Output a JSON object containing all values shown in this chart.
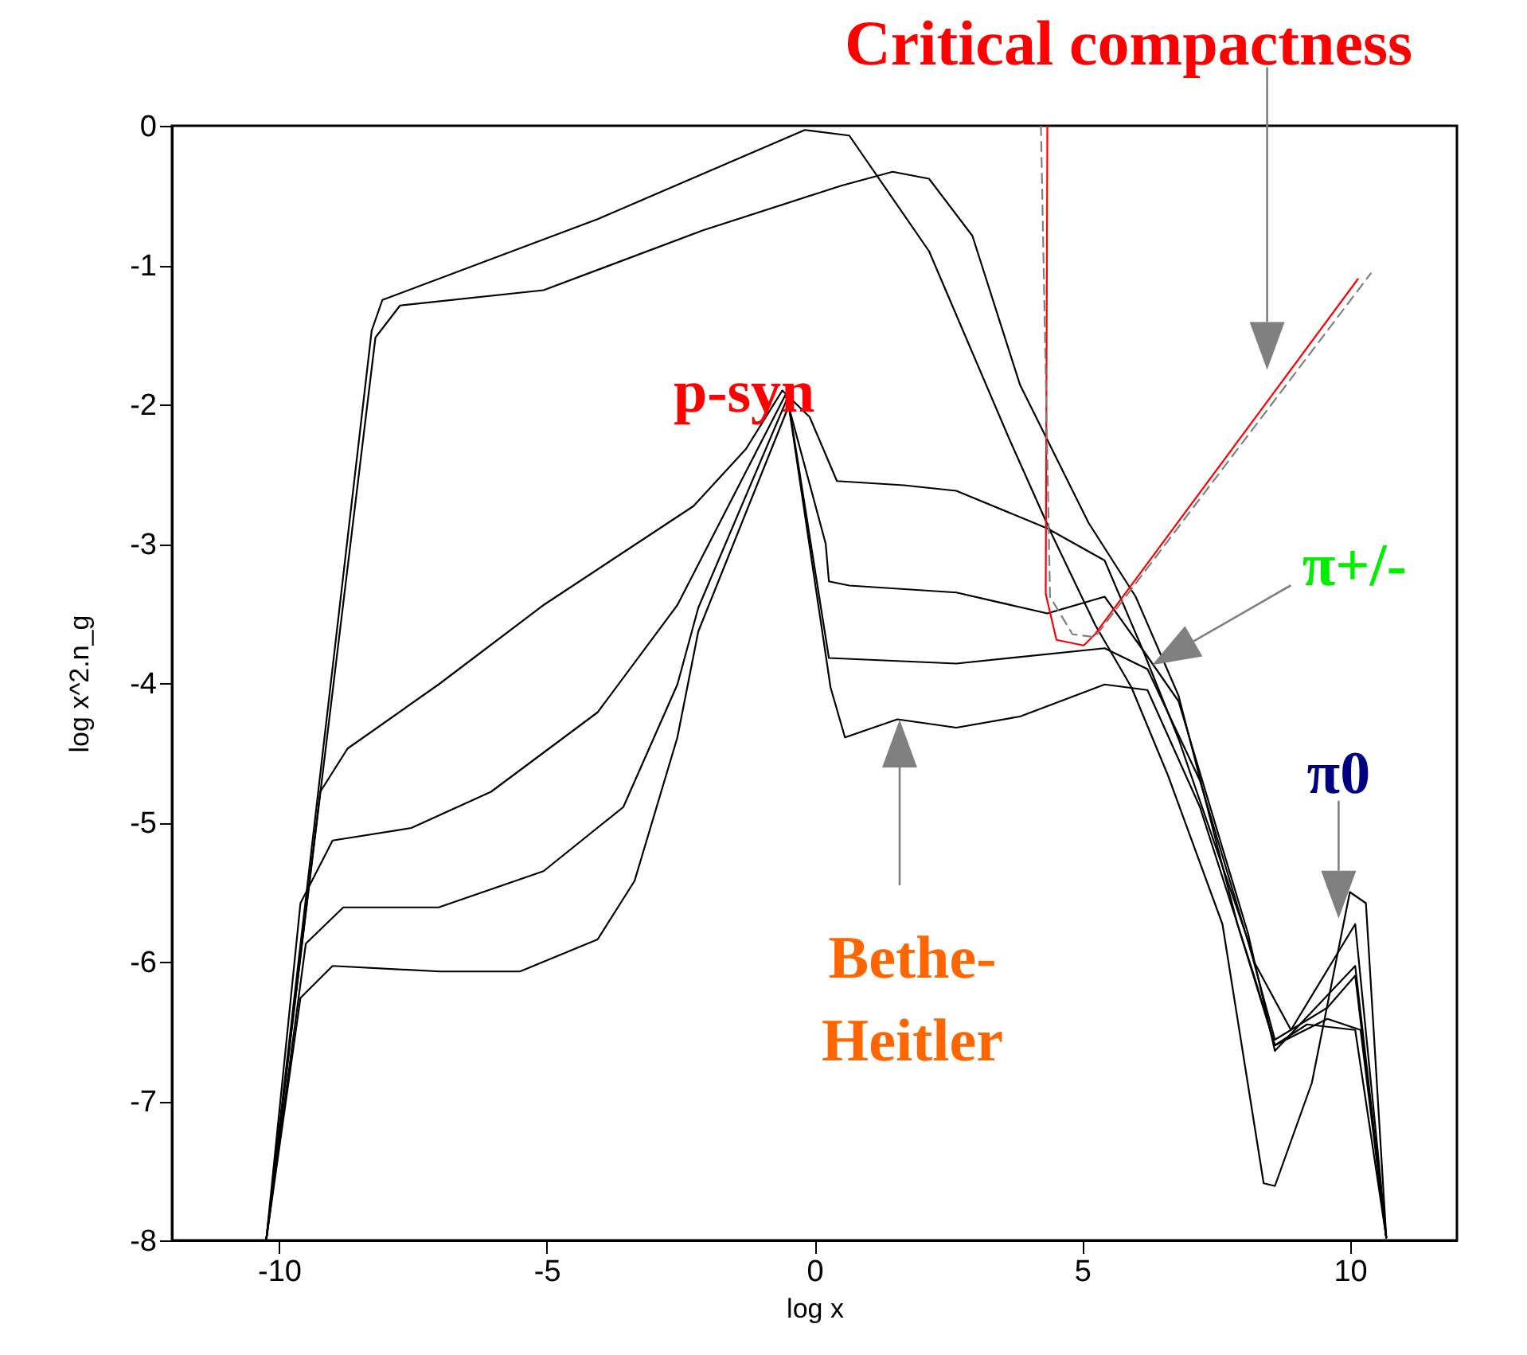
{
  "chart_data": {
    "type": "line",
    "xlabel": "log x",
    "ylabel": "log x^2.n_g",
    "xlim": [
      -12,
      12
    ],
    "ylim": [
      -8,
      0
    ],
    "xticks": [
      -10,
      -5,
      0,
      5,
      10
    ],
    "yticks": [
      -8,
      -7,
      -6,
      -5,
      -4,
      -3,
      -2,
      -1,
      0
    ],
    "grid": false,
    "legend": false,
    "series": [
      {
        "color": "#000000",
        "x": [
          -10.24,
          -8.27,
          -8.07,
          -4.05,
          -0.18,
          0.65,
          2.14,
          3.63,
          4.43,
          5.24,
          5.92,
          6.6,
          7.62,
          8.39,
          8.6,
          9.29,
          10.0,
          10.3,
          10.68
        ],
        "values": [
          -8,
          -1.47,
          -1.25,
          -0.67,
          -0.03,
          -0.07,
          -0.9,
          -2.24,
          -2.93,
          -3.58,
          -4.03,
          -4.66,
          -5.73,
          -7.59,
          -7.61,
          -6.87,
          -5.5,
          -5.58,
          -7.98
        ]
      },
      {
        "color": "#000000",
        "x": [
          -10.24,
          -8.2,
          -7.74,
          -5.06,
          -2.08,
          0.5,
          1.46,
          2.14,
          2.95,
          3.84,
          5.12,
          6.0,
          6.8,
          7.9,
          8.6,
          9.58,
          10.2,
          10.68
        ],
        "values": [
          -8,
          -1.52,
          -1.29,
          -1.18,
          -0.75,
          -0.43,
          -0.33,
          -0.38,
          -0.79,
          -1.86,
          -2.85,
          -3.38,
          -4.09,
          -5.73,
          -6.6,
          -6.41,
          -6.49,
          -7.98
        ]
      },
      {
        "color": "#000000",
        "x": [
          -10.24,
          -9.23,
          -8.72,
          -7.02,
          -5.06,
          -2.26,
          -1.28,
          -0.6,
          -0.09,
          0.42,
          1.67,
          2.65,
          4.35,
          5.42,
          6.13,
          6.8,
          8.1,
          8.6,
          10.1,
          10.68
        ],
        "values": [
          -8,
          -4.78,
          -4.47,
          -4.01,
          -3.44,
          -2.73,
          -2.32,
          -1.9,
          -2.09,
          -2.55,
          -2.58,
          -2.62,
          -2.89,
          -3.12,
          -3.76,
          -4.13,
          -5.8,
          -6.64,
          -6.03,
          -7.98
        ]
      },
      {
        "color": "#000000",
        "x": [
          -10.24,
          -9.6,
          -9.0,
          -7.53,
          -6.04,
          -4.05,
          -2.56,
          -0.54,
          0.21,
          0.27,
          0.65,
          2.65,
          4.35,
          5.42,
          6.13,
          6.8,
          8.1,
          8.6,
          9.58,
          10.1,
          10.68
        ],
        "values": [
          -8,
          -5.58,
          -5.13,
          -5.04,
          -4.78,
          -4.21,
          -3.44,
          -1.93,
          -3.0,
          -3.27,
          -3.3,
          -3.35,
          -3.5,
          -3.38,
          -3.76,
          -4.4,
          -5.85,
          -6.56,
          -6.33,
          -6.1,
          -7.98
        ]
      },
      {
        "color": "#000000",
        "x": [
          -10.24,
          -9.5,
          -8.8,
          -7.02,
          -5.06,
          -3.57,
          -2.56,
          -2.17,
          -0.5,
          0.27,
          2.65,
          5.42,
          6.22,
          7.2,
          8.21,
          8.9,
          10.1,
          10.68
        ],
        "values": [
          -8,
          -5.87,
          -5.61,
          -5.61,
          -5.35,
          -4.89,
          -4.01,
          -3.46,
          -1.95,
          -3.82,
          -3.86,
          -3.75,
          -3.9,
          -4.7,
          -6.0,
          -6.49,
          -5.73,
          -7.98
        ]
      },
      {
        "color": "#000000",
        "x": [
          -10.24,
          -9.6,
          -9.0,
          -7.0,
          -5.5,
          -4.05,
          -3.36,
          -2.56,
          -2.17,
          -0.48,
          0.3,
          0.57,
          1.55,
          2.65,
          3.84,
          5.42,
          6.22,
          7.2,
          8.21,
          8.6,
          9.2,
          10.1,
          10.68
        ],
        "values": [
          -8,
          -6.26,
          -6.03,
          -6.07,
          -6.07,
          -5.84,
          -5.42,
          -4.39,
          -3.63,
          -2.01,
          -4.03,
          -4.39,
          -4.26,
          -4.32,
          -4.24,
          -4.01,
          -4.05,
          -4.89,
          -6.1,
          -6.6,
          -6.45,
          -6.49,
          -7.98
        ]
      },
      {
        "color": "#808080",
        "line_style": "dashed",
        "x": [
          4.23,
          4.4,
          4.82,
          5.24,
          10.39
        ],
        "values": [
          0,
          -3.38,
          -3.65,
          -3.67,
          -1.06
        ]
      },
      {
        "name": "Critical compactness",
        "color": "#ff0000",
        "x": [
          4.35,
          4.32,
          4.52,
          5.03,
          5.24,
          10.15
        ],
        "values": [
          0,
          -3.36,
          -3.69,
          -3.73,
          -3.65,
          -1.1
        ]
      }
    ],
    "annotations": [
      {
        "text": "p-syn",
        "x": -0.6,
        "y": -1.95
      },
      {
        "text": "π+/-",
        "x": 6.31,
        "y": -3.87
      },
      {
        "text": "π0",
        "x": 9.79,
        "y": -5.69
      },
      "Bethe-\nHeitler"
    ]
  }
}
